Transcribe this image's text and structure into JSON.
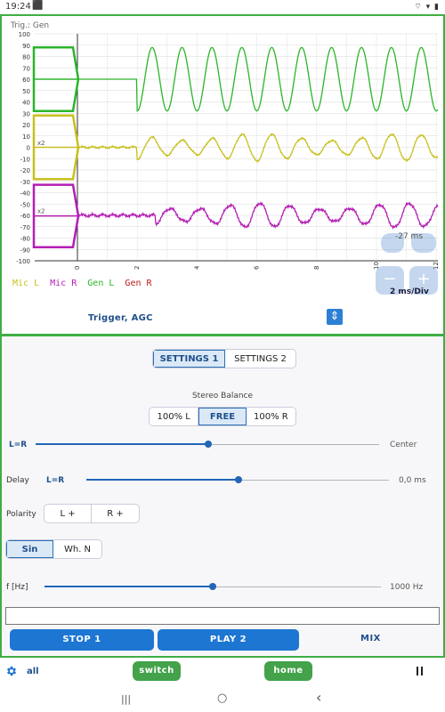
{
  "status_bar": {
    "time": "19:24",
    "notification": "⬛",
    "right_icons": "⌔ ▾ ▮"
  },
  "scope": {
    "trigger_label": "Trig.: Gen",
    "y_ticks": [
      "100",
      "90",
      "80",
      "70",
      "60",
      "50",
      "40",
      "30",
      "20",
      "10",
      "0",
      "-10",
      "-20",
      "-30",
      "-40",
      "-50",
      "-60",
      "-70",
      "-80",
      "-90",
      "-100"
    ],
    "x_ticks": [
      "0",
      "2",
      "4",
      "6",
      "8",
      "10",
      "12"
    ],
    "ms_readout": "-27 ms",
    "ms_per_div": "2 ms/Div",
    "zoom_in": "+",
    "zoom_out": "−",
    "gain_marker_1": "x2",
    "gain_marker_2": "x2",
    "legend": [
      {
        "label": "Mic L",
        "color": "#c8c020"
      },
      {
        "label": "Mic R",
        "color": "#b41eb4"
      },
      {
        "label": "Gen L",
        "color": "#2bb52b"
      },
      {
        "label": "Gen R",
        "color": "#c01818"
      }
    ],
    "trigger_agc": "Trigger, AGC",
    "updown_icon": "⇕",
    "colors": {
      "gen": "#2bb52b",
      "mic_l": "#c8c020",
      "mic_r": "#b41eb4"
    }
  },
  "settings_tabs": [
    "SETTINGS 1",
    "SETTINGS 2"
  ],
  "stereo": {
    "title": "Stereo Balance",
    "options": [
      "100% L",
      "FREE",
      "100% R"
    ],
    "selected": "FREE",
    "slider_label": "L=R",
    "slider_value": "Center",
    "slider_position": 0.49
  },
  "delay": {
    "label": "Delay",
    "sub_label": "L=R",
    "value": "0,0 ms",
    "slider_position": 0.5
  },
  "polarity": {
    "label": "Polarity",
    "options": [
      "L +",
      "R +"
    ]
  },
  "waveform": {
    "options": [
      "Sin",
      "Wh. N"
    ],
    "selected": "Sin"
  },
  "frequency": {
    "label": "f [Hz]",
    "value": "1000 Hz",
    "slider_position": 0.5
  },
  "actions": {
    "stop": "STOP 1",
    "play": "PLAY 2",
    "mix": "MIX"
  },
  "bottom_bar": {
    "all_label": "all",
    "switch_label": "switch",
    "home_label": "home"
  },
  "nav": {
    "recents": "|||",
    "home": "○",
    "back": "‹"
  }
}
